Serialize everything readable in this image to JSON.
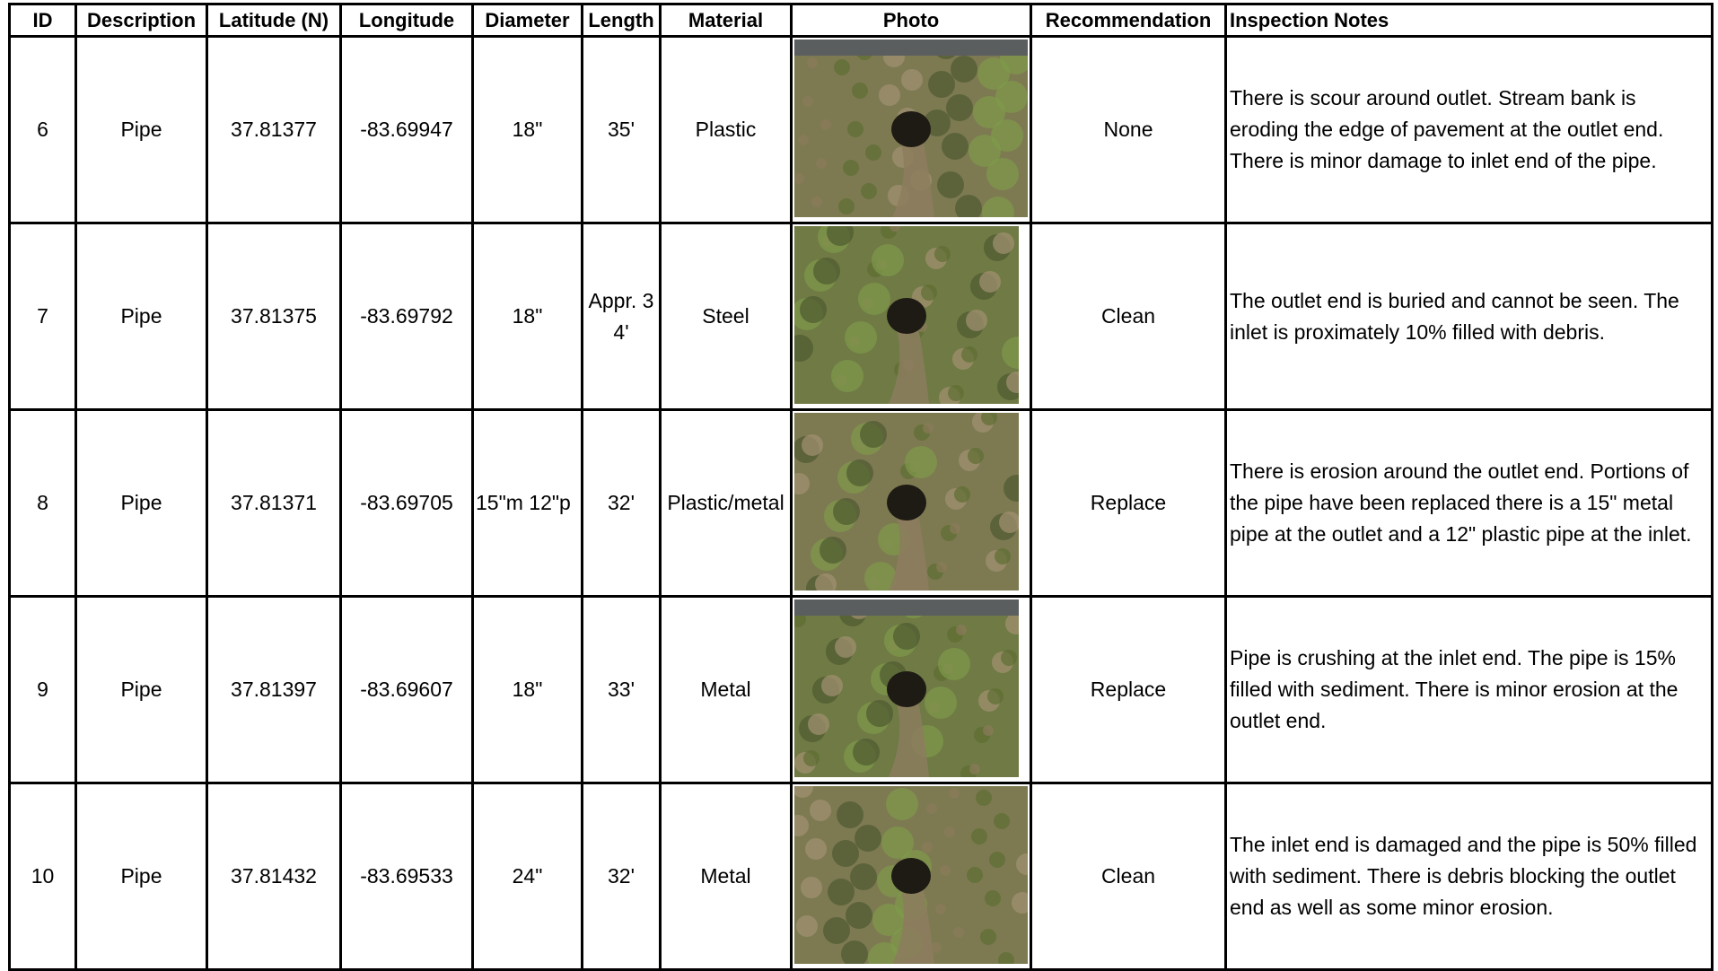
{
  "table": {
    "columns": [
      "ID",
      "Description",
      "Latitude (N)",
      "Longitude",
      "Diameter",
      "Length",
      "Material",
      "Photo",
      "Recommendation",
      "Inspection Notes"
    ],
    "rows": [
      {
        "id": 6,
        "description": "Pipe",
        "latitude": 37.81377,
        "longitude": -83.69947,
        "diameter": "18\"",
        "length": "35'",
        "material": "Plastic",
        "recommendation": "None",
        "notes": "There is scour around outlet. Stream bank is eroding the edge of pavement at the outlet end. There is minor damage to inlet end of the pipe."
      },
      {
        "id": 7,
        "description": "Pipe",
        "latitude": 37.81375,
        "longitude": -83.69792,
        "diameter": "18\"",
        "length": "Appr. 34'",
        "material": "Steel",
        "recommendation": "Clean",
        "notes": "The outlet end is buried and cannot be seen. The inlet is proximately 10% filled with debris."
      },
      {
        "id": 8,
        "description": "Pipe",
        "latitude": 37.81371,
        "longitude": -83.69705,
        "diameter": "15\"m 12\"p",
        "length": "32'",
        "material": "Plastic/metal",
        "recommendation": "Replace",
        "notes": "There is erosion around the outlet end. Portions of the pipe have been replaced there is a 15\" metal pipe at the outlet and a 12\" plastic pipe at the inlet."
      },
      {
        "id": 9,
        "description": "Pipe",
        "latitude": 37.81397,
        "longitude": -83.69607,
        "diameter": "18\"",
        "length": "33'",
        "material": "Metal",
        "recommendation": "Replace",
        "notes": "Pipe is crushing at the inlet end. The pipe is 15% filled with sediment. There is minor erosion at the outlet end."
      },
      {
        "id": 10,
        "description": "Pipe",
        "latitude": 37.81432,
        "longitude": -83.69533,
        "diameter": "24\"",
        "length": "32'",
        "material": "Metal",
        "recommendation": "Clean",
        "notes": "The inlet end is damaged and the pipe is 50% filled with sediment. There is debris blocking the outlet end as well as some minor erosion."
      }
    ]
  }
}
